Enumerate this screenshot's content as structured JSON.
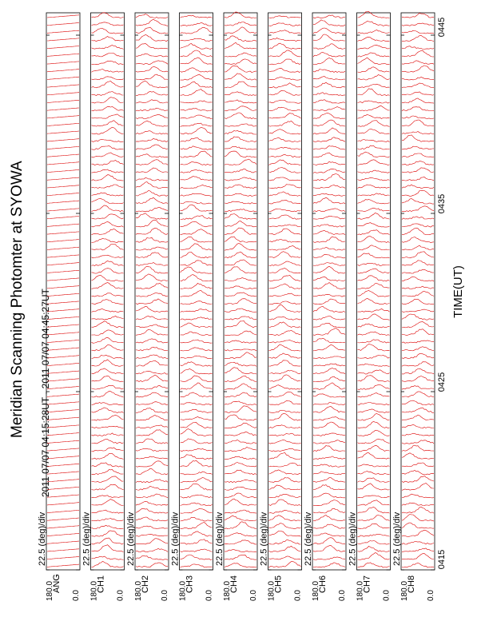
{
  "header": {
    "title": "Meridian Scanning Photomter at SYOWA",
    "subtitle": "2011 07/07 04:15:28UT - 2011 07/07 04:45:27UT"
  },
  "axis": {
    "xlabel": "TIME(UT)",
    "ticks": [
      "0415",
      "0425",
      "0435",
      "0445"
    ]
  },
  "panels": [
    {
      "name": "ANG",
      "scale": "22.5 (deg)/div",
      "ymax": "180.0",
      "ymin": "0.0"
    },
    {
      "name": "CH1",
      "scale": "22.5 (deg)/div",
      "ymax": "180.0",
      "ymin": "0.0"
    },
    {
      "name": "CH2",
      "scale": "22.5 (deg)/div",
      "ymax": "180.0",
      "ymin": "0.0"
    },
    {
      "name": "CH3",
      "scale": "22.5 (deg)/div",
      "ymax": "180.0",
      "ymin": "0.0"
    },
    {
      "name": "CH4",
      "scale": "22.5 (deg)/div",
      "ymax": "180.0",
      "ymin": "0.0"
    },
    {
      "name": "CH5",
      "scale": "22.5 (deg)/div",
      "ymax": "180.0",
      "ymin": "0.0"
    },
    {
      "name": "CH6",
      "scale": "22.5 (deg)/div",
      "ymax": "180.0",
      "ymin": "0.0"
    },
    {
      "name": "CH7",
      "scale": "22.5 (deg)/div",
      "ymax": "180.0",
      "ymin": "0.0"
    },
    {
      "name": "CH8",
      "scale": "22.5 (deg)/div",
      "ymax": "180.0",
      "ymin": "0.0"
    }
  ],
  "chart_data": {
    "type": "line",
    "title": "Meridian Scanning Photomter at SYOWA",
    "subtitle": "2011 07/07 04:15:28UT - 2011 07/07 04:45:27UT",
    "xlabel": "TIME(UT)",
    "x_ticks": [
      "0415",
      "0425",
      "0435",
      "0445"
    ],
    "y_range": [
      0.0,
      180.0
    ],
    "y_scale": "22.5 (deg)/div",
    "scan_count": 72,
    "series_color": "#dd0000",
    "panels": [
      "ANG",
      "CH1",
      "CH2",
      "CH3",
      "CH4",
      "CH5",
      "CH6",
      "CH7",
      "CH8"
    ]
  }
}
